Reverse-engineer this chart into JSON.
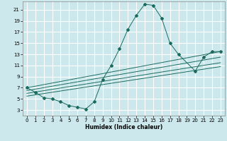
{
  "xlabel": "Humidex (Indice chaleur)",
  "bg_color": "#cce8ed",
  "grid_color": "#ffffff",
  "line_color": "#1a6b5e",
  "xlim": [
    -0.5,
    23.5
  ],
  "ylim": [
    2.0,
    22.5
  ],
  "yticks": [
    3,
    5,
    7,
    9,
    11,
    13,
    15,
    17,
    19,
    21
  ],
  "xticks": [
    0,
    1,
    2,
    3,
    4,
    5,
    6,
    7,
    8,
    9,
    10,
    11,
    12,
    13,
    14,
    15,
    16,
    17,
    18,
    19,
    20,
    21,
    22,
    23
  ],
  "curve_x": [
    0,
    1,
    2,
    3,
    4,
    5,
    6,
    7,
    8,
    9,
    10,
    11,
    12,
    13,
    14,
    15,
    16,
    17,
    18,
    20,
    21,
    22,
    23
  ],
  "curve_y": [
    7.0,
    6.2,
    5.2,
    5.0,
    4.5,
    3.8,
    3.5,
    3.2,
    4.5,
    8.5,
    11.0,
    14.0,
    17.5,
    20.0,
    22.0,
    21.8,
    19.5,
    15.0,
    13.0,
    10.0,
    12.5,
    13.5,
    13.5
  ],
  "line1_x": [
    0,
    23
  ],
  "line1_y": [
    7.0,
    13.5
  ],
  "line2_x": [
    0,
    23
  ],
  "line2_y": [
    6.5,
    12.5
  ],
  "line3_x": [
    0,
    23
  ],
  "line3_y": [
    6.0,
    11.5
  ],
  "line4_x": [
    0,
    23
  ],
  "line4_y": [
    5.5,
    10.8
  ]
}
